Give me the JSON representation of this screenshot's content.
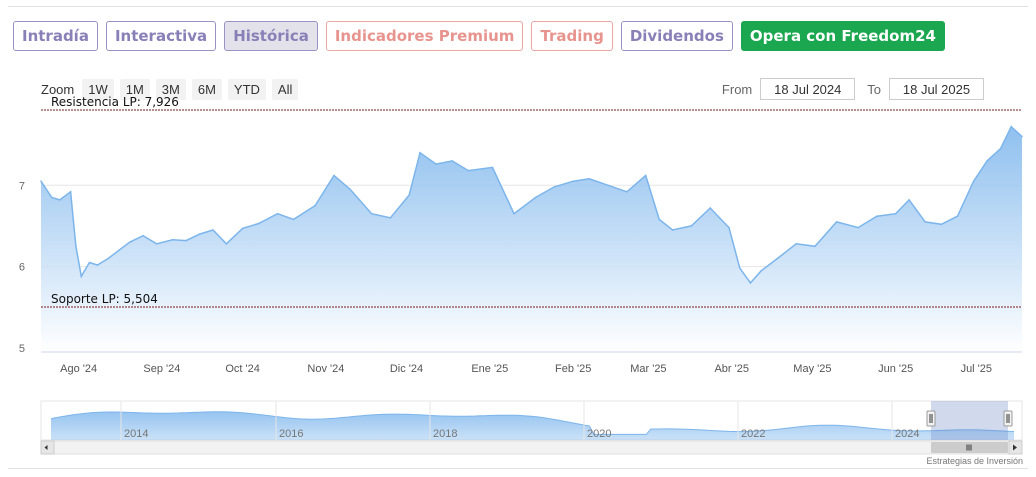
{
  "tabs": [
    {
      "label": "Intradía",
      "style": "purple"
    },
    {
      "label": "Interactiva",
      "style": "purple"
    },
    {
      "label": "Histórica",
      "style": "active"
    },
    {
      "label": "Indicadores Premium",
      "style": "salmon"
    },
    {
      "label": "Trading",
      "style": "salmon"
    },
    {
      "label": "Dividendos",
      "style": "purple"
    },
    {
      "label": "Opera con Freedom24",
      "style": "green"
    }
  ],
  "zoom": {
    "label": "Zoom",
    "buttons": [
      "1W",
      "1M",
      "3M",
      "6M",
      "YTD",
      "All"
    ]
  },
  "range": {
    "from_label": "From",
    "from_value": "18 Jul 2024",
    "to_label": "To",
    "to_value": "18 Jul 2025"
  },
  "credit": "Estrategias de Inversión",
  "colors": {
    "line": "#7cb5ec",
    "fill_top": "#7cb5ec",
    "fill_bottom": "#ffffff",
    "plotline": "#7a1c1c",
    "green": "#1aa74f"
  },
  "chart_data": {
    "type": "area",
    "x_start": "2024-07-18",
    "x_end": "2025-07-18",
    "ylim": [
      4.95,
      7.95
    ],
    "y_ticks": [
      5,
      6,
      7
    ],
    "x_tick_labels": [
      "Ago '24",
      "Sep '24",
      "Oct '24",
      "Nov '24",
      "Dic '24",
      "Ene '25",
      "Feb '25",
      "Mar '25",
      "Abr '25",
      "May '25",
      "Jun '25",
      "Jul '25"
    ],
    "plot_lines": [
      {
        "label": "Resistencia LP: 7,926",
        "value": 7.926
      },
      {
        "label": "Soporte LP: 5,504",
        "value": 5.504
      }
    ],
    "series": [
      {
        "x": [
          "2024-07-18",
          "2024-07-22",
          "2024-07-25",
          "2024-07-29",
          "2024-07-31",
          "2024-08-02",
          "2024-08-05",
          "2024-08-08",
          "2024-08-12",
          "2024-08-16",
          "2024-08-20",
          "2024-08-25",
          "2024-08-30",
          "2024-09-05",
          "2024-09-10",
          "2024-09-15",
          "2024-09-20",
          "2024-09-25",
          "2024-10-01",
          "2024-10-07",
          "2024-10-14",
          "2024-10-20",
          "2024-10-28",
          "2024-11-04",
          "2024-11-10",
          "2024-11-18",
          "2024-11-25",
          "2024-12-02",
          "2024-12-06",
          "2024-12-12",
          "2024-12-18",
          "2024-12-24",
          "2025-01-02",
          "2025-01-10",
          "2025-01-18",
          "2025-01-25",
          "2025-02-01",
          "2025-02-07",
          "2025-02-14",
          "2025-02-21",
          "2025-02-28",
          "2025-03-05",
          "2025-03-10",
          "2025-03-17",
          "2025-03-24",
          "2025-03-31",
          "2025-04-04",
          "2025-04-08",
          "2025-04-12",
          "2025-04-18",
          "2025-04-25",
          "2025-05-02",
          "2025-05-10",
          "2025-05-18",
          "2025-05-25",
          "2025-06-01",
          "2025-06-06",
          "2025-06-12",
          "2025-06-18",
          "2025-06-24",
          "2025-06-30",
          "2025-07-05",
          "2025-07-10",
          "2025-07-14",
          "2025-07-18"
        ],
        "values": [
          7.05,
          6.85,
          6.82,
          6.92,
          6.25,
          5.88,
          6.05,
          6.02,
          6.1,
          6.2,
          6.3,
          6.38,
          6.28,
          6.33,
          6.32,
          6.4,
          6.45,
          6.28,
          6.47,
          6.53,
          6.65,
          6.58,
          6.75,
          7.12,
          6.95,
          6.65,
          6.6,
          6.88,
          7.4,
          7.26,
          7.3,
          7.18,
          7.22,
          6.65,
          6.85,
          6.98,
          7.05,
          7.08,
          7.0,
          6.92,
          7.12,
          6.58,
          6.45,
          6.5,
          6.72,
          6.48,
          5.98,
          5.8,
          5.95,
          6.1,
          6.28,
          6.25,
          6.55,
          6.48,
          6.62,
          6.65,
          6.82,
          6.55,
          6.52,
          6.62,
          7.05,
          7.3,
          7.45,
          7.72,
          7.6
        ]
      }
    ],
    "navigator": {
      "labels": [
        "2014",
        "2016",
        "2018",
        "2020",
        "2022",
        "2024"
      ]
    }
  }
}
